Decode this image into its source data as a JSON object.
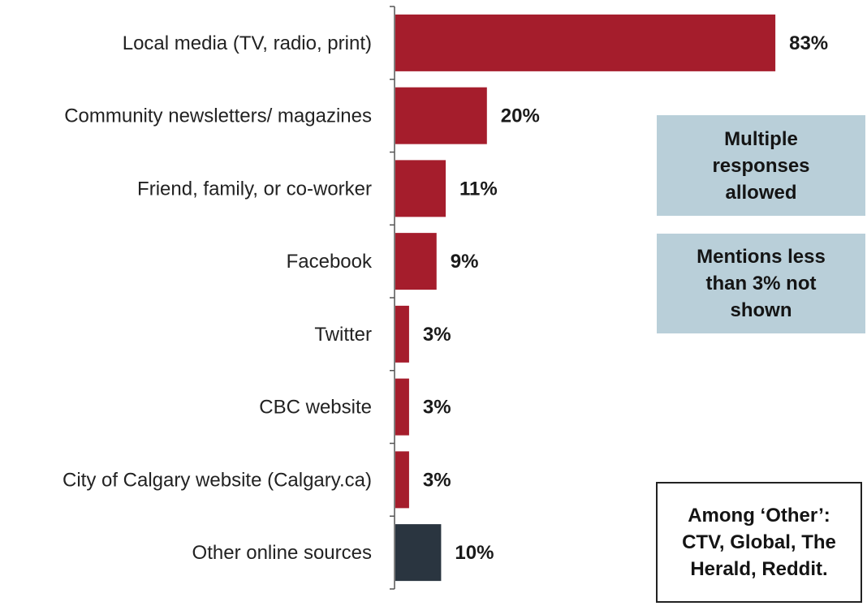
{
  "chart_data": {
    "type": "bar",
    "orientation": "horizontal",
    "categories": [
      "Local media (TV, radio, print)",
      "Community newsletters/ magazines",
      "Friend, family, or co-worker",
      "Facebook",
      "Twitter",
      "CBC website",
      "City of Calgary website (Calgary.ca)",
      "Other online sources"
    ],
    "values": [
      83,
      20,
      11,
      9,
      3,
      3,
      3,
      10
    ],
    "value_labels": [
      "83%",
      "20%",
      "11%",
      "9%",
      "3%",
      "3%",
      "3%",
      "10%"
    ],
    "bar_colors": [
      "#a51d2c",
      "#a51d2c",
      "#a51d2c",
      "#a51d2c",
      "#a51d2c",
      "#a51d2c",
      "#a51d2c",
      "#2a3540"
    ],
    "xlim": [
      0,
      100
    ],
    "title": "",
    "xlabel": "",
    "ylabel": "",
    "grid": false,
    "legend": "none"
  },
  "notes": {
    "multiple": "Multiple responses allowed",
    "mentions": "Mentions less than 3% not shown",
    "other": "Among ‘Other’: CTV, Global, The Herald, Reddit."
  },
  "colors": {
    "primary_bar": "#a51d2c",
    "highlight_bar": "#2a3540",
    "note_fill": "#b9cfd9"
  }
}
